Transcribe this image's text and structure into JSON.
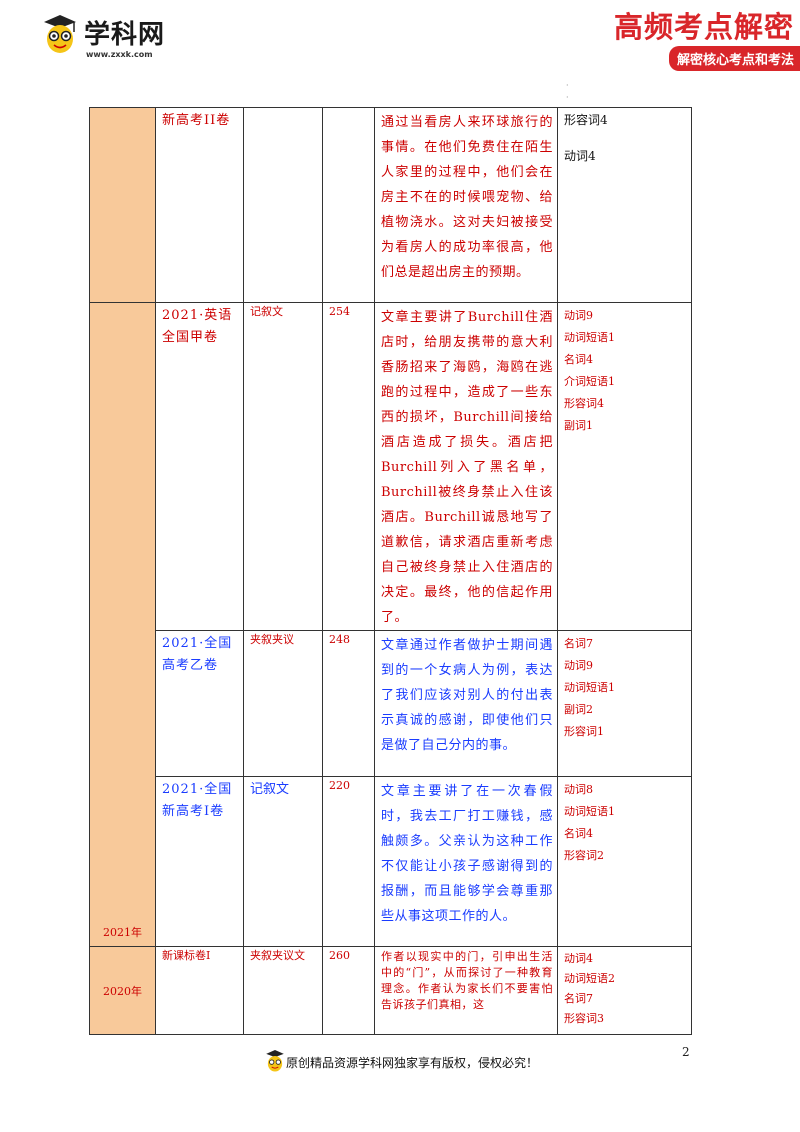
{
  "header": {
    "brand": "学科网",
    "url": "www.zxxk.com",
    "banner_title": "高频考点解密",
    "banner_subtitle": "解密核心考点和考法"
  },
  "table": {
    "rows": [
      {
        "source": "新高考II卷",
        "genre": "",
        "count": "",
        "summary": "通过当看房人来环球旅行的事情。在他们免费住在陌生人家里的过程中，他们会在房主不在的时候喂宠物、给植物浇水。这对夫妇被接受为看房人的成功率很高，他们总是超出房主的预期。",
        "words": [
          "形容词4",
          "动词4"
        ]
      },
      {
        "source": "2021·英语全国甲卷",
        "genre": "记叙文",
        "count": "254",
        "summary": "文章主要讲了Burchill住酒店时，给朋友携带的意大利香肠招来了海鸥，海鸥在逃跑的过程中，造成了一些东西的损坏，Burchill间接给酒店造成了损失。酒店把Burchill列入了黑名单，Burchill被终身禁止入住该酒店。Burchill诚恳地写了道歉信，请求酒店重新考虑自己被终身禁止入住酒店的决定。最终，他的信起作用了。",
        "words": [
          "动词9",
          "动词短语1",
          "名词4",
          "介词短语1",
          "形容词4",
          "副词1"
        ]
      },
      {
        "source": "2021·全国高考乙卷",
        "genre": "夹叙夹议",
        "count": "248",
        "summary": "文章通过作者做护士期间遇到的一个女病人为例，表达了我们应该对别人的付出表示真诚的感谢，即使他们只是做了自己分内的事。",
        "words": [
          "名词7",
          "动词9",
          "动词短语1",
          "副词2",
          "形容词1"
        ]
      },
      {
        "source": "2021·全国新高考I卷",
        "genre": "记叙文",
        "count": "220",
        "summary": "文章主要讲了在一次春假时，我去工厂打工赚钱，感触颇多。父亲认为这种工作不仅能让小孩子感谢得到的报酬，而且能够学会尊重那些从事这项工作的人。",
        "words": [
          "动词8",
          "动词短语1",
          "名词4",
          "形容词2"
        ]
      },
      {
        "source": "新课标卷I",
        "genre": "夹叙夹议文",
        "count": "260",
        "summary": "作者以现实中的门，引申出生活中的“门”，从而探讨了一种教育理念。作者认为家长们不要害怕告诉孩子们真相，这",
        "words": [
          "动词4",
          "动词短语2",
          "名词7",
          "形容词3"
        ]
      }
    ],
    "years": [
      "2021年",
      "2020年"
    ]
  },
  "page_number": "2",
  "footer": "原创精品资源学科网独家享有版权，侵权必究！",
  "colors": {
    "red": "#cc0000",
    "blue": "#1a3cff",
    "year_bg": "#f8c99a",
    "banner": "#d9262a"
  }
}
